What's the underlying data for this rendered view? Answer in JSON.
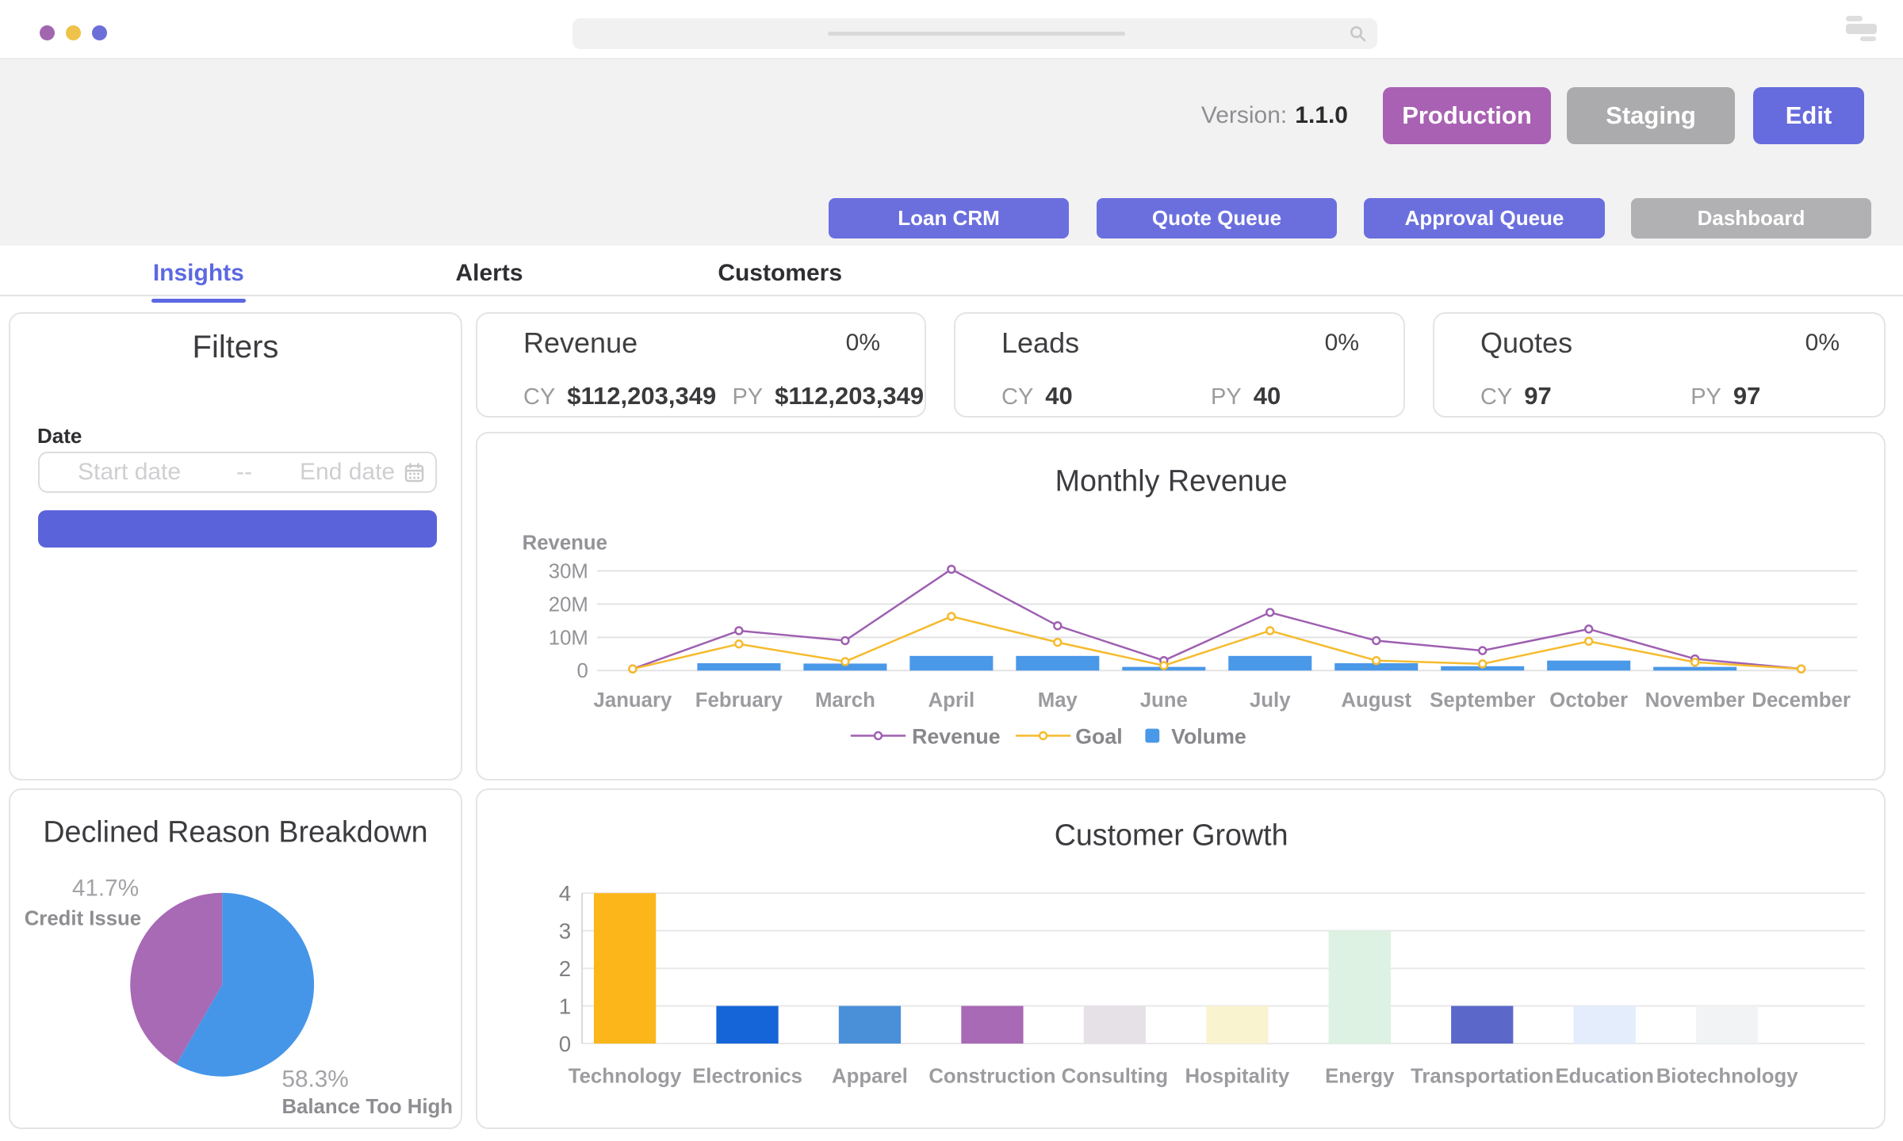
{
  "browser": {
    "traffic_lights": [
      "#a266ae",
      "#efc24a",
      "#6d6fd8"
    ],
    "search_icon_color": "#c6c6c9"
  },
  "header": {
    "version_label": "Version:",
    "version_value": "1.1.0",
    "env_buttons": [
      {
        "label": "Production",
        "bg": "#a961b3"
      },
      {
        "label": "Staging",
        "bg": "#ababad"
      },
      {
        "label": "Edit",
        "bg": "#666bdd"
      }
    ],
    "nav_buttons": [
      {
        "label": "Loan CRM",
        "bg": "#6b6fde"
      },
      {
        "label": "Quote Queue",
        "bg": "#6b6fde"
      },
      {
        "label": "Approval Queue",
        "bg": "#6b6fde"
      },
      {
        "label": "Dashboard",
        "bg": "#b1b1b3"
      }
    ]
  },
  "tabs": [
    {
      "label": "Insights",
      "active": true
    },
    {
      "label": "Alerts",
      "active": false
    },
    {
      "label": "Customers",
      "active": false
    }
  ],
  "filters": {
    "title": "Filters",
    "date_label": "Date",
    "start_placeholder": "Start date",
    "range_separator": "--",
    "end_placeholder": "End date",
    "apply_button_label": "",
    "apply_button_color": "#5b63da"
  },
  "kpis": [
    {
      "title": "Revenue",
      "pct": "0%",
      "cy_label": "CY",
      "cy_value": "$112,203,349",
      "py_label": "PY",
      "py_value": "$112,203,349"
    },
    {
      "title": "Leads",
      "pct": "0%",
      "cy_label": "CY",
      "cy_value": "40",
      "py_label": "PY",
      "py_value": "40"
    },
    {
      "title": "Quotes",
      "pct": "0%",
      "cy_label": "CY",
      "cy_value": "97",
      "py_label": "PY",
      "py_value": "97"
    }
  ],
  "chart_data": [
    {
      "type": "line+bar",
      "title": "Monthly Revenue",
      "ylabel": "Revenue",
      "categories": [
        "January",
        "February",
        "March",
        "April",
        "May",
        "June",
        "July",
        "August",
        "September",
        "October",
        "November",
        "December"
      ],
      "yticks": [
        {
          "v": 30,
          "label": "30M"
        },
        {
          "v": 20,
          "label": "20M"
        },
        {
          "v": 10,
          "label": "10M"
        },
        {
          "v": 0,
          "label": "0"
        }
      ],
      "ylim": [
        0,
        32
      ],
      "unit": "M",
      "grid": true,
      "legend_position": "bottom",
      "series": [
        {
          "name": "Revenue",
          "kind": "line",
          "color": "#9e5fb0",
          "values": [
            0.5,
            12,
            9,
            30.5,
            13.5,
            3,
            17.5,
            9,
            6,
            12.5,
            3.5,
            0.5
          ]
        },
        {
          "name": "Goal",
          "kind": "line",
          "color": "#f5bb2d",
          "values": [
            0.5,
            8,
            2.7,
            16.3,
            8.5,
            1.5,
            12,
            3,
            2,
            8.8,
            2.5,
            0.5
          ]
        },
        {
          "name": "Volume",
          "kind": "bar",
          "color": "#4a98e8",
          "values": [
            0,
            2.2,
            2.1,
            4.4,
            4.4,
            1.1,
            4.4,
            2.2,
            1.3,
            3,
            1.1,
            0
          ]
        }
      ]
    },
    {
      "type": "pie",
      "title": "Declined Reason Breakdown",
      "slices": [
        {
          "label": "Balance Too High",
          "pct_label": "58.3%",
          "value": 58.3,
          "color": "#4596e8"
        },
        {
          "label": "Credit Issue",
          "pct_label": "41.7%",
          "value": 41.7,
          "color": "#a869b5"
        }
      ]
    },
    {
      "type": "bar",
      "title": "Customer Growth",
      "categories": [
        "Technology",
        "Electronics",
        "Apparel",
        "Construction",
        "Consulting",
        "Hospitality",
        "Energy",
        "Transportation",
        "Education",
        "Biotechnology"
      ],
      "values": [
        4,
        1,
        1,
        1,
        1,
        1,
        3,
        1,
        1,
        1
      ],
      "colors": [
        "#fcb61a",
        "#1565d8",
        "#4a90d9",
        "#a869b5",
        "#e6e1e6",
        "#faf3d0",
        "#ddf2e2",
        "#5b68c9",
        "#e3edfb",
        "#f1f3f4"
      ],
      "yticks": [
        0,
        1,
        2,
        3,
        4
      ],
      "ylim": [
        0,
        4
      ],
      "grid": true
    }
  ]
}
